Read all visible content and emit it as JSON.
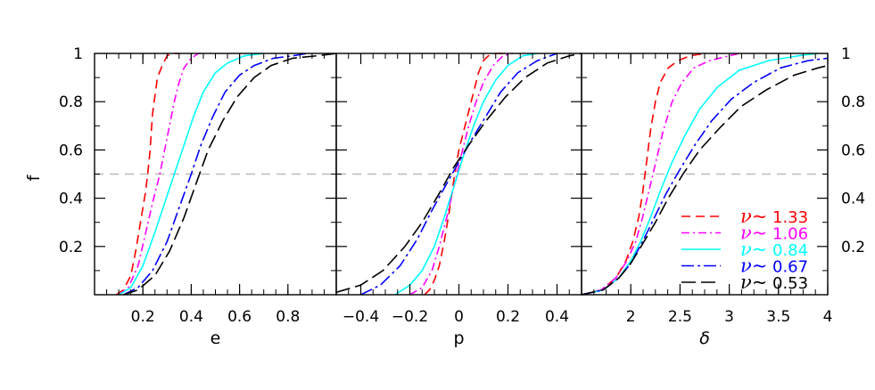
{
  "chart_data": {
    "type": "line",
    "ylabel": "f",
    "ylim": [
      0,
      1
    ],
    "yticks": [
      "0.2",
      "0.4",
      "0.6",
      "0.8",
      "1"
    ],
    "yticks_right": [
      "0.2",
      "0.4",
      "0.6",
      "0.8",
      "1"
    ],
    "reference_line": {
      "y": 0.5,
      "color": "#bbbbbb",
      "style": "dashed"
    },
    "legend": {
      "placement": "bottom-right of third panel",
      "entries": [
        {
          "symbol": "ν~",
          "value": "1.33",
          "color": "#ff0000",
          "dash": "dashed"
        },
        {
          "symbol": "ν~",
          "value": "1.06",
          "color": "#ff00ff",
          "dash": "dash-dot"
        },
        {
          "symbol": "ν~",
          "value": "0.84",
          "color": "#00ffff",
          "dash": "solid"
        },
        {
          "symbol": "ν~",
          "value": "0.67",
          "color": "#0000ff",
          "dash": "long-dash-dot"
        },
        {
          "symbol": "ν~",
          "value": "0.53",
          "color": "#000000",
          "dash": "long-dash"
        }
      ]
    },
    "panels": [
      {
        "xlabel": "e",
        "xlim": [
          0,
          1
        ],
        "xticks": [
          0.2,
          0.4,
          0.6,
          0.8
        ],
        "xtick_labels": [
          "0.2",
          "0.4",
          "0.6",
          "0.8"
        ],
        "series": [
          {
            "legend_index": 0,
            "x": [
              0.09,
              0.12,
              0.15,
              0.17,
              0.19,
              0.21,
              0.22,
              0.23,
              0.24,
              0.26,
              0.28,
              0.3,
              0.32,
              0.35
            ],
            "y": [
              0,
              0.02,
              0.08,
              0.18,
              0.3,
              0.42,
              0.5,
              0.6,
              0.75,
              0.9,
              0.95,
              0.99,
              1.0,
              1.0
            ]
          },
          {
            "legend_index": 1,
            "x": [
              0.1,
              0.14,
              0.18,
              0.21,
              0.24,
              0.27,
              0.29,
              0.31,
              0.33,
              0.35,
              0.37,
              0.4,
              0.43,
              0.45
            ],
            "y": [
              0,
              0.03,
              0.12,
              0.25,
              0.38,
              0.5,
              0.6,
              0.7,
              0.8,
              0.88,
              0.94,
              0.98,
              1.0,
              1.0
            ]
          },
          {
            "legend_index": 2,
            "x": [
              0.1,
              0.15,
              0.2,
              0.25,
              0.29,
              0.33,
              0.37,
              0.41,
              0.45,
              0.5,
              0.55,
              0.62,
              0.7
            ],
            "y": [
              0,
              0.03,
              0.12,
              0.26,
              0.38,
              0.5,
              0.62,
              0.74,
              0.84,
              0.92,
              0.96,
              0.99,
              1.0
            ]
          },
          {
            "legend_index": 3,
            "x": [
              0.12,
              0.18,
              0.24,
              0.3,
              0.35,
              0.4,
              0.44,
              0.49,
              0.54,
              0.6,
              0.66,
              0.74,
              0.82,
              0.88
            ],
            "y": [
              0,
              0.03,
              0.1,
              0.22,
              0.36,
              0.5,
              0.62,
              0.74,
              0.84,
              0.91,
              0.95,
              0.98,
              0.99,
              1.0
            ]
          },
          {
            "legend_index": 4,
            "x": [
              0.12,
              0.18,
              0.25,
              0.31,
              0.37,
              0.42,
              0.47,
              0.53,
              0.59,
              0.66,
              0.73,
              0.82,
              0.92,
              1.0
            ],
            "y": [
              0,
              0.02,
              0.08,
              0.18,
              0.32,
              0.46,
              0.6,
              0.72,
              0.82,
              0.9,
              0.95,
              0.98,
              0.99,
              1.0
            ]
          }
        ]
      },
      {
        "xlabel": "p",
        "xlim": [
          -0.5,
          0.5
        ],
        "xticks": [
          -0.4,
          -0.2,
          0,
          0.2,
          0.4
        ],
        "xtick_labels": [
          "−0.4",
          "−0.2",
          "0",
          "0.2",
          "0.4"
        ],
        "series": [
          {
            "legend_index": 0,
            "x": [
              -0.14,
              -0.12,
              -0.1,
              -0.08,
              -0.06,
              -0.04,
              -0.02,
              0.0,
              0.02,
              0.04,
              0.06,
              0.08,
              0.1,
              0.12,
              0.15,
              0.18
            ],
            "y": [
              0,
              0.02,
              0.06,
              0.12,
              0.22,
              0.34,
              0.48,
              0.6,
              0.68,
              0.76,
              0.84,
              0.92,
              0.97,
              0.99,
              1.0,
              1.0
            ]
          },
          {
            "legend_index": 1,
            "x": [
              -0.2,
              -0.15,
              -0.11,
              -0.08,
              -0.05,
              -0.02,
              0.01,
              0.04,
              0.07,
              0.1,
              0.14,
              0.18,
              0.22
            ],
            "y": [
              0,
              0.03,
              0.1,
              0.2,
              0.32,
              0.45,
              0.58,
              0.7,
              0.8,
              0.88,
              0.95,
              0.99,
              1.0
            ]
          },
          {
            "legend_index": 2,
            "x": [
              -0.26,
              -0.2,
              -0.15,
              -0.1,
              -0.06,
              -0.02,
              0.02,
              0.06,
              0.1,
              0.15,
              0.2,
              0.26,
              0.32
            ],
            "y": [
              0,
              0.04,
              0.1,
              0.2,
              0.32,
              0.45,
              0.58,
              0.7,
              0.8,
              0.89,
              0.95,
              0.99,
              1.0
            ]
          },
          {
            "legend_index": 3,
            "x": [
              -0.4,
              -0.32,
              -0.24,
              -0.17,
              -0.11,
              -0.05,
              0.0,
              0.05,
              0.11,
              0.17,
              0.24,
              0.32,
              0.4
            ],
            "y": [
              0,
              0.04,
              0.12,
              0.23,
              0.35,
              0.46,
              0.55,
              0.64,
              0.74,
              0.84,
              0.92,
              0.97,
              1.0
            ]
          },
          {
            "legend_index": 4,
            "x": [
              -0.5,
              -0.4,
              -0.31,
              -0.22,
              -0.15,
              -0.08,
              -0.02,
              0.04,
              0.11,
              0.19,
              0.27,
              0.36,
              0.45,
              0.5
            ],
            "y": [
              0.01,
              0.04,
              0.1,
              0.2,
              0.3,
              0.42,
              0.53,
              0.62,
              0.72,
              0.82,
              0.9,
              0.96,
              0.99,
              1.0
            ]
          }
        ]
      },
      {
        "xlabel": "δ",
        "xlim": [
          1.5,
          4
        ],
        "xticks": [
          2,
          2.5,
          3,
          3.5,
          4
        ],
        "xtick_labels": [
          "2",
          "2.5",
          "3",
          "3.5",
          "4"
        ],
        "series": [
          {
            "legend_index": 0,
            "x": [
              1.5,
              1.7,
              1.85,
              1.95,
              2.02,
              2.08,
              2.12,
              2.16,
              2.2,
              2.25,
              2.3,
              2.38,
              2.48,
              2.6,
              2.75
            ],
            "y": [
              0,
              0.02,
              0.07,
              0.14,
              0.22,
              0.32,
              0.42,
              0.55,
              0.68,
              0.8,
              0.88,
              0.94,
              0.97,
              0.99,
              1.0
            ]
          },
          {
            "legend_index": 1,
            "x": [
              1.5,
              1.7,
              1.85,
              1.96,
              2.05,
              2.12,
              2.19,
              2.26,
              2.33,
              2.42,
              2.52,
              2.64,
              2.8,
              3.0,
              3.1
            ],
            "y": [
              0,
              0.02,
              0.07,
              0.14,
              0.22,
              0.32,
              0.44,
              0.56,
              0.68,
              0.8,
              0.88,
              0.94,
              0.97,
              0.99,
              1.0
            ]
          },
          {
            "legend_index": 2,
            "x": [
              1.5,
              1.72,
              1.88,
              2.0,
              2.1,
              2.2,
              2.3,
              2.42,
              2.55,
              2.7,
              2.88,
              3.1,
              3.4,
              3.7,
              3.9
            ],
            "y": [
              0,
              0.02,
              0.07,
              0.14,
              0.22,
              0.32,
              0.43,
              0.55,
              0.66,
              0.77,
              0.86,
              0.93,
              0.97,
              0.99,
              1.0
            ]
          },
          {
            "legend_index": 3,
            "x": [
              1.5,
              1.72,
              1.88,
              2.0,
              2.12,
              2.24,
              2.36,
              2.5,
              2.65,
              2.82,
              3.02,
              3.25,
              3.52,
              3.8,
              4.0
            ],
            "y": [
              0,
              0.02,
              0.07,
              0.13,
              0.22,
              0.32,
              0.42,
              0.52,
              0.62,
              0.72,
              0.81,
              0.88,
              0.94,
              0.97,
              0.98
            ]
          },
          {
            "legend_index": 4,
            "x": [
              1.5,
              1.72,
              1.88,
              2.0,
              2.12,
              2.25,
              2.38,
              2.53,
              2.7,
              2.9,
              3.12,
              3.38,
              3.66,
              3.9,
              4.0
            ],
            "y": [
              0,
              0.02,
              0.07,
              0.13,
              0.21,
              0.3,
              0.4,
              0.5,
              0.6,
              0.69,
              0.78,
              0.85,
              0.91,
              0.94,
              0.95
            ]
          }
        ]
      }
    ]
  }
}
